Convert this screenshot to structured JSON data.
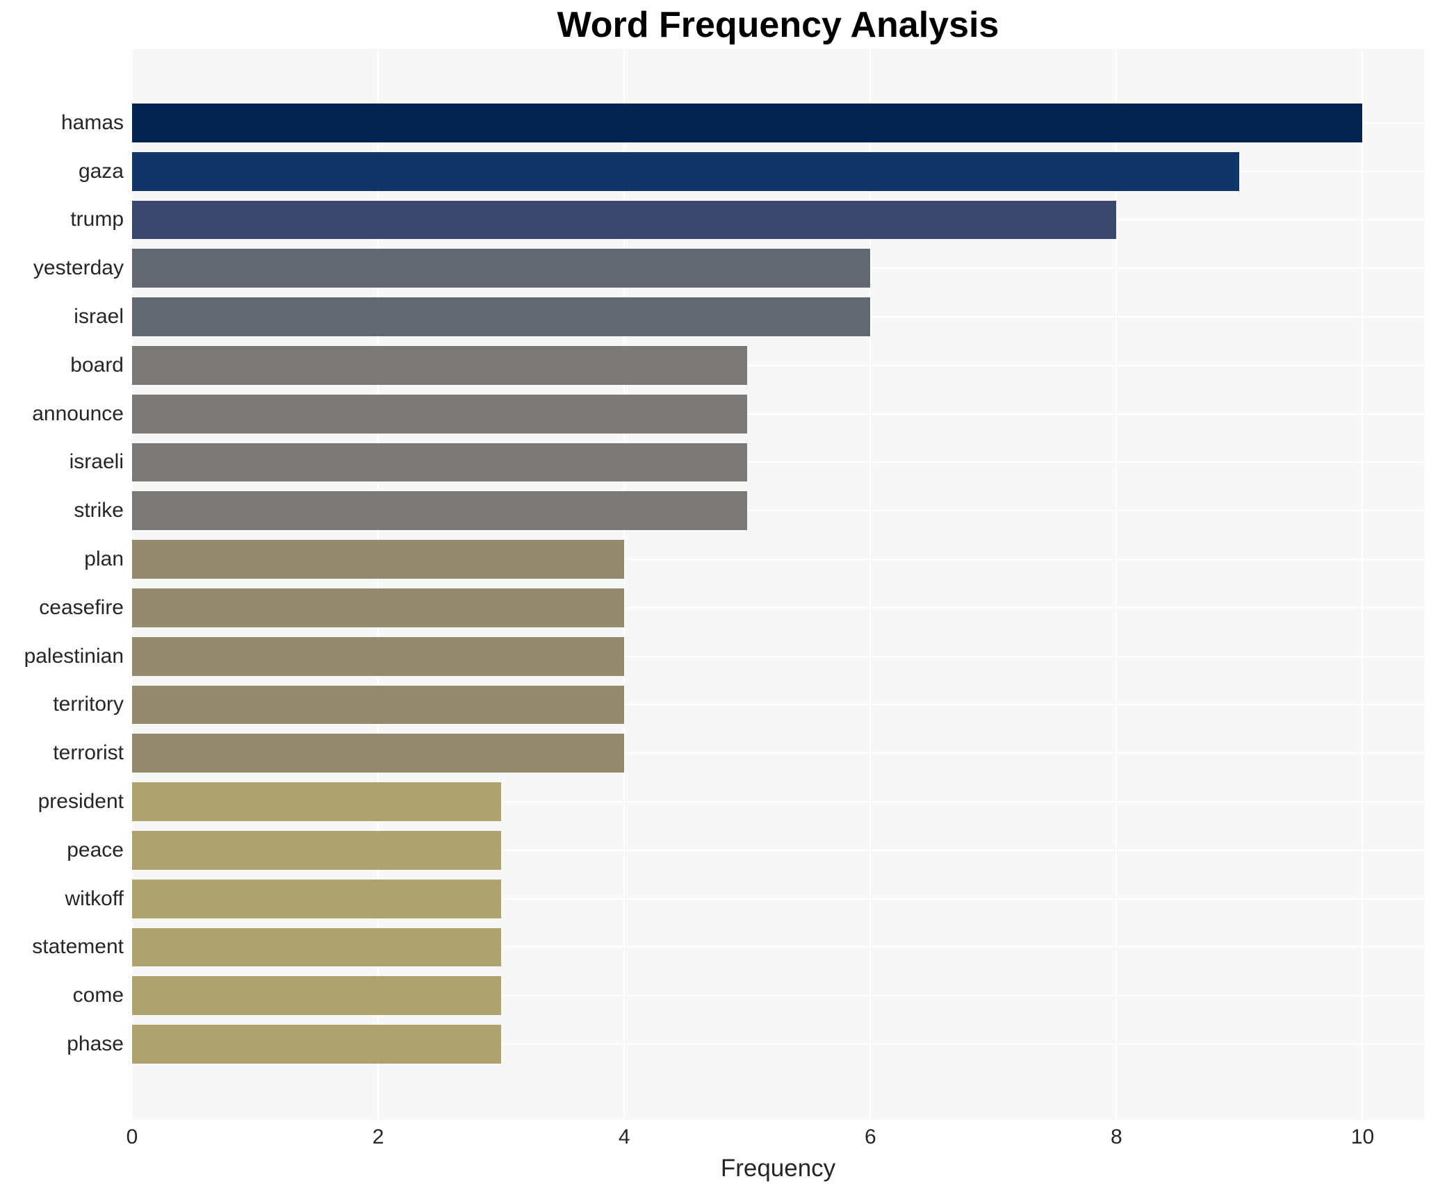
{
  "title": "Word Frequency Analysis",
  "xlabel": "Frequency",
  "chart_data": {
    "type": "bar",
    "orientation": "horizontal",
    "title": "Word Frequency Analysis",
    "xlabel": "Frequency",
    "ylabel": "",
    "categories": [
      "hamas",
      "gaza",
      "trump",
      "yesterday",
      "israel",
      "board",
      "announce",
      "israeli",
      "strike",
      "plan",
      "ceasefire",
      "palestinian",
      "territory",
      "terrorist",
      "president",
      "peace",
      "witkoff",
      "statement",
      "come",
      "phase"
    ],
    "values": [
      10,
      9,
      8,
      6,
      6,
      5,
      5,
      5,
      5,
      4,
      4,
      4,
      4,
      4,
      3,
      3,
      3,
      3,
      3,
      3
    ],
    "bar_colors": [
      "#022350",
      "#123568",
      "#3a476f",
      "#63676f",
      "#63676f",
      "#7b7a76",
      "#7b7a76",
      "#7b7a76",
      "#7b7a76",
      "#948b6e",
      "#948b6e",
      "#948b6e",
      "#948b6e",
      "#948b6e",
      "#aea36f",
      "#aea36f",
      "#aea36f",
      "#aea36f",
      "#aea36f",
      "#aea36f"
    ],
    "xlim": [
      0,
      10.5
    ],
    "xticks": [
      0,
      2,
      4,
      6,
      8,
      10
    ],
    "grid": true,
    "grid_color": "#ffffff",
    "plot_background": "#f7f7f8",
    "figure_background": "#ffffff",
    "legend": false
  }
}
